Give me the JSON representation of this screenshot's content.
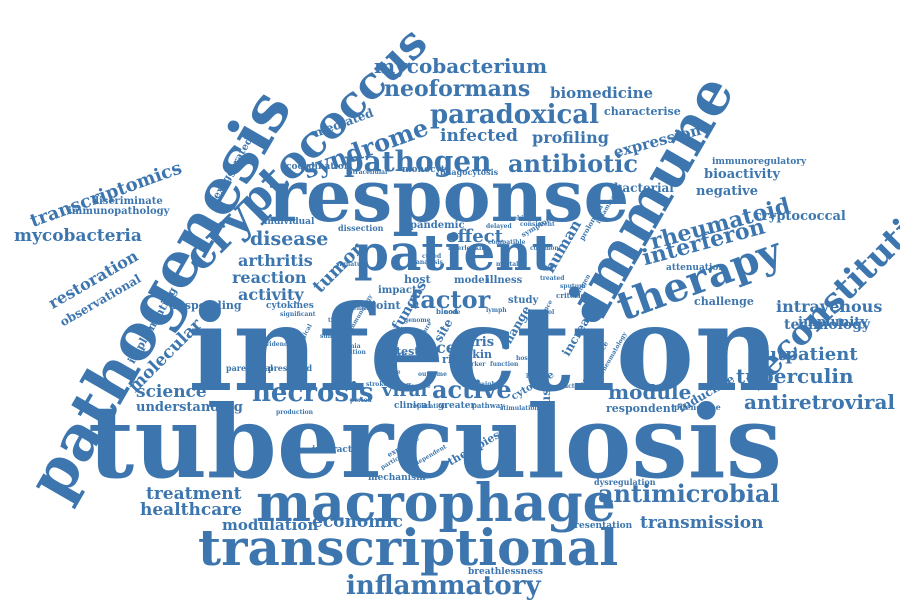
{
  "color": "#3d76ae",
  "words": {
    "infection": "infection",
    "tuberculosis": "tuberculosis",
    "pathogenesis": "pathogenesis",
    "response": "response",
    "patient": "patient",
    "immune": "immune",
    "macrophage": "macrophage",
    "transcriptional": "transcriptional",
    "cryptococcus": "cryptococcus",
    "therapy": "therapy",
    "reconstitution": "reconstitution",
    "pathogen": "pathogen",
    "antibiotic": "antibiotic",
    "paradoxical": "paradoxical",
    "syndrome": "syndrome",
    "neoformans": "neoformans",
    "mycobacterium": "mycobacterium",
    "biomedicine": "biomedicine",
    "infected": "infected",
    "profiling": "profiling",
    "expression": "expression",
    "characterise": "characterise",
    "mediated": "mediated",
    "transcriptomics": "transcriptomics",
    "immunopathology": "immunopathology",
    "discriminate": "discriminate",
    "exaggerated": "exaggerated",
    "coordination": "coordination",
    "mycobacteria": "mycobacteria",
    "disease": "disease",
    "arthritis": "arthritis",
    "reaction": "reaction",
    "activity": "activity",
    "tumor": "tumor",
    "factor": "factor",
    "interferon": "interferon",
    "rheumatoid": "rheumatoid",
    "negative": "negative",
    "bioactivity": "bioactivity",
    "immunoregulatory": "immunoregulatory",
    "bacterial": "bacterial",
    "cryptococcal": "cryptococcal",
    "restoration": "restoration",
    "observational": "observational",
    "molecular": "molecular",
    "implementing": "implementing",
    "responding": "responding",
    "science": "science",
    "understanding": "understanding",
    "necrosis": "necrosis",
    "viral": "viral",
    "active": "active",
    "module": "module",
    "respondent": "respondent",
    "inducible": "inducible",
    "phenotype": "phenotype",
    "antiretroviral": "antiretroviral",
    "tuberculin": "tuberculin",
    "outpatient": "outpatient",
    "immunity": "immunity",
    "technology": "technology",
    "intravenous": "intravenous",
    "challenge": "challenge",
    "attenuation": "attenuation",
    "treatment": "treatment",
    "healthcare": "healthcare",
    "modulation": "modulation",
    "economic": "economic",
    "antimicrobial": "antimicrobial",
    "transmission": "transmission",
    "presentation": "presentation",
    "dysregulation": "dysregulation",
    "inflammatory": "inflammatory",
    "breathlessness": "breathlessness",
    "infectious": "infectious",
    "therapies": "therapies",
    "mechanism": "mechanism",
    "interaction": "interaction",
    "human": "human",
    "effect": "effect",
    "fungus": "fungus",
    "individual": "individual",
    "dissection": "dissection",
    "pandemic": "pandemic",
    "intracellular": "intracellular",
    "monocyte": "monocyte",
    "phagocytosis": "phagocytosis",
    "joint": "joint",
    "host": "host",
    "model": "model",
    "illness": "illness",
    "impact": "impact",
    "study": "study",
    "cell": "cell",
    "iris": "iris",
    "risk": "risk",
    "skin": "skin",
    "test": "test",
    "centre": "centre",
    "fungal": "fungal",
    "clinical": "clinical",
    "greater": "greater",
    "pathway": "pathway",
    "stimulation": "stimulation",
    "cytokine": "cytokine",
    "change": "change",
    "increase": "increase",
    "criterion": "criterion",
    "site": "site",
    "parenteral": "parenteral",
    "preserved": "preserved",
    "production": "production",
    "exposure": "exposure",
    "consequence": "consequence",
    "prolonged": "prolonged",
    "inflammation": "inflammation",
    "symptom": "symptom",
    "seeking": "seeking",
    "delayed": "delayed",
    "consistent": "consistent",
    "interleukin": "interleukin",
    "mortality": "mortality",
    "hospital": "hospital",
    "worker": "worker",
    "feature": "feature",
    "severe": "severe",
    "blood": "blood",
    "function": "function",
    "replication": "replication",
    "participant": "participant",
    "dependent": "dependent",
    "signature": "signature",
    "cytokines": "cytokines",
    "compatible": "compatible",
    "significant": "significant",
    "potential": "potential",
    "anemia": "anemia",
    "effective": "effective",
    "condition": "condition",
    "node": "node",
    "biological": "biological",
    "immunology": "immunology",
    "genome": "genome",
    "weight": "weight",
    "stroke": "stroke",
    "induced": "induced",
    "common": "common",
    "defence": "defence",
    "cured": "cured",
    "evidence": "evidence",
    "bacteria": "bacteria",
    "rheumatology": "rheumatology",
    "tissue": "tissue",
    "lymph": "lymph",
    "outcome": "outcome",
    "control": "control",
    "period": "period",
    "treated": "treated",
    "analysis": "analysis",
    "subtype": "subtype",
    "level": "level",
    "antigen": "antigen",
    "culture": "culture",
    "sputum": "sputum"
  }
}
